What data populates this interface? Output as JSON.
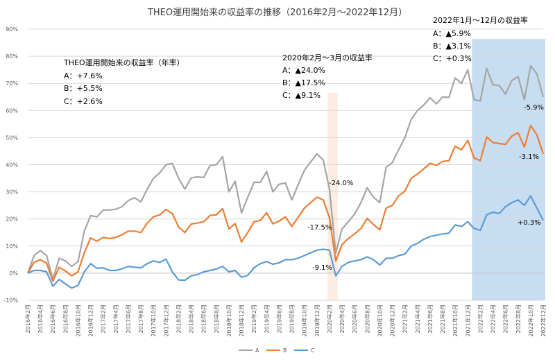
{
  "chart_data": {
    "type": "line",
    "title": "THEO運用開始来の収益率の推移（2016年2月～2022年12月）",
    "ylim": [
      -10,
      90
    ],
    "y_ticks": [
      "90%",
      "80%",
      "70%",
      "60%",
      "50%",
      "40%",
      "30%",
      "20%",
      "10%",
      "0%",
      "-10%"
    ],
    "grid": true,
    "legend_position": "bottom",
    "colors": {
      "A": "#a5a5a5",
      "B": "#ed7d31",
      "C": "#5b9bd5",
      "shade_blue": "#bdd7ee",
      "shade_orange": "#fbe5d6"
    },
    "x_labels": [
      "2016年2月",
      "2016年4月",
      "2016年6月",
      "2016年8月",
      "2016年10月",
      "2016年12月",
      "2017年2月",
      "2017年4月",
      "2017年6月",
      "2017年8月",
      "2017年10月",
      "2017年12月",
      "2018年2月",
      "2018年4月",
      "2018年6月",
      "2018年8月",
      "2018年10月",
      "2018年12月",
      "2019年2月",
      "2019年4月",
      "2019年6月",
      "2019年8月",
      "2019年10月",
      "2019年12月",
      "2020年2月",
      "2020年4月",
      "2020年6月",
      "2020年8月",
      "2020年10月",
      "2020年12月",
      "2021年2月",
      "2021年4月",
      "2021年6月",
      "2021年8月",
      "2021年10月",
      "2021年12月",
      "2022年2月",
      "2022年4月",
      "2022年6月",
      "2022年8月",
      "2022年10月",
      "2022年12月"
    ],
    "series": [
      {
        "name": "A",
        "values": [
          0,
          6.5,
          8.3,
          6.5,
          -2.3,
          5.5,
          4.5,
          2.5,
          4.3,
          15.5,
          21.2,
          20.8,
          23.3,
          23.3,
          23.6,
          24.5,
          26.8,
          27.8,
          26.3,
          31,
          35,
          37,
          40,
          40.5,
          35,
          31,
          35.2,
          35.5,
          35.3,
          39.8,
          40,
          43,
          30,
          33.9,
          22.2,
          28,
          33.5,
          33.5,
          37.5,
          30,
          32.8,
          33.3,
          27,
          32.5,
          37.9,
          41,
          44,
          41.8,
          31,
          7.5,
          16.3,
          19,
          21.8,
          26,
          31.5,
          28,
          26,
          39,
          40.8,
          45.5,
          50,
          56.7,
          60,
          62,
          64.7,
          62.4,
          65,
          64.8,
          72,
          70,
          75,
          64,
          63.5,
          75.5,
          69.5,
          69.2,
          66,
          71,
          72.5,
          64,
          76.5,
          73.5,
          65
        ]
      },
      {
        "name": "B",
        "values": [
          0,
          4,
          5,
          3.7,
          -3,
          2.2,
          0.8,
          -1,
          0.5,
          7.5,
          13,
          11.8,
          13.2,
          12.8,
          13.2,
          14.2,
          15.5,
          15.5,
          15,
          18.5,
          20.8,
          21.5,
          23.5,
          22,
          17,
          15,
          18.1,
          18.5,
          19,
          21.3,
          21.5,
          23.8,
          16.3,
          18.3,
          11.5,
          15,
          19,
          19.5,
          22.3,
          18.2,
          19.2,
          20.8,
          17.2,
          20.5,
          24,
          26,
          28,
          27,
          20.5,
          4.5,
          10.5,
          12.8,
          14.5,
          16.5,
          20.2,
          17.9,
          16,
          24,
          25,
          28.5,
          30.3,
          35,
          36.6,
          38.5,
          40.5,
          39.8,
          41.2,
          41.5,
          46.8,
          45.5,
          49,
          42.5,
          41.5,
          50.2,
          48.2,
          47.8,
          47.5,
          50.5,
          51.8,
          46.5,
          54.5,
          51,
          44
        ]
      },
      {
        "name": "C",
        "values": [
          0,
          1,
          1,
          0.5,
          -4.8,
          -2.3,
          -4,
          -5.5,
          -4.5,
          0.5,
          3.5,
          1.8,
          2,
          1,
          1,
          1.6,
          2.5,
          2.2,
          2,
          3.5,
          4.5,
          4,
          5.2,
          0.5,
          -2.5,
          -2.6,
          -1,
          -0.5,
          0.5,
          1,
          1.5,
          2.5,
          0.5,
          1,
          -1.5,
          -0.8,
          2,
          3.5,
          4.3,
          3.3,
          3.8,
          5,
          5,
          5.5,
          6.5,
          7.5,
          8.5,
          8.8,
          8.5,
          -1,
          2.5,
          4,
          4.5,
          5,
          6,
          5,
          3,
          5.5,
          5.5,
          6.5,
          7,
          10,
          11,
          12.5,
          13.5,
          14,
          14.5,
          14.7,
          17.8,
          17.2,
          19,
          16.5,
          15.8,
          21.5,
          22.5,
          22,
          24.5,
          26,
          27,
          25,
          28.5,
          24,
          19.5
        ]
      }
    ],
    "shaded_ranges": [
      {
        "color": "orange",
        "from_label": "2020年2月",
        "to_label": "2020年3月"
      },
      {
        "color": "blue",
        "from_label": "2022年1月",
        "to_label": "2022年12月"
      }
    ],
    "annotations": {
      "annual_title": "THEO運用開始来の収益率（年率）",
      "annual": [
        "A：+7.6%",
        "B：+5.5%",
        "C：+2.6%"
      ],
      "covid_title": "2020年2月～3月の収益率",
      "covid": [
        "A：▲24.0%",
        "B：▲17.5%",
        "C：▲9.1%"
      ],
      "y2022_title": "2022年1月～12月の収益率",
      "y2022": [
        "A：▲5.9%",
        "B：▲3.1%",
        "C：+0.3%"
      ],
      "covid_labels": [
        "-24.0%",
        "-17.5%",
        "-9.1%"
      ],
      "y2022_labels": [
        "-5.9%",
        "-3.1%",
        "+0.3%"
      ]
    }
  }
}
